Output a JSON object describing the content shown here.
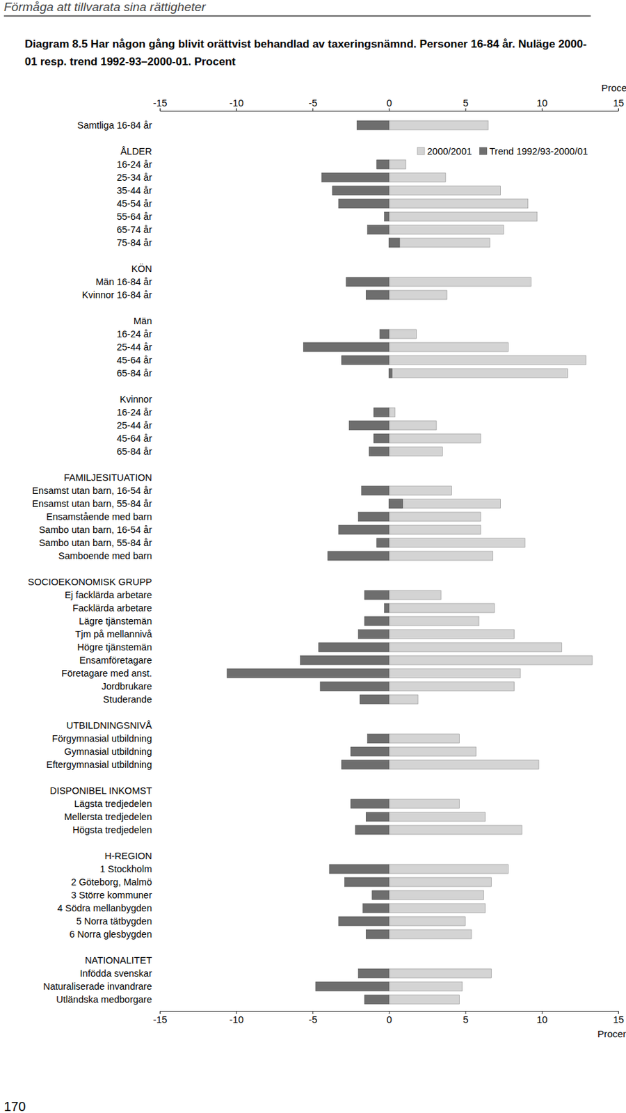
{
  "page": {
    "header": "Förmåga att tillvarata sina rättigheter",
    "page_number": 170
  },
  "chart_data": {
    "type": "bar",
    "orientation": "horizontal",
    "title": "Diagram 8.5 Har någon gång blivit orättvist behandlad av taxeringsnämnd. Personer 16-84 år. Nuläge 2000-01 resp. trend 1992-93–2000-01. Procent",
    "x_label": "Procent",
    "xlim": [
      -15,
      15
    ],
    "xticks": [
      -15,
      -10,
      -5,
      0,
      5,
      10,
      15
    ],
    "legend": "upper right",
    "categories": [
      "Samtliga 16-84 år",
      null,
      "ÅLDER",
      "16-24 år",
      "25-34 år",
      "35-44 år",
      "45-54 år",
      "55-64 år",
      "65-74 år",
      "75-84 år",
      null,
      "KÖN",
      "Män 16-84 år",
      "Kvinnor 16-84 år",
      null,
      "Män",
      "16-24 år",
      "25-44 år",
      "45-64 år",
      "65-84 år",
      null,
      "Kvinnor",
      "16-24 år",
      "25-44 år",
      "45-64 år",
      "65-84 år",
      null,
      "FAMILJESITUATION",
      "Ensamst utan barn, 16-54 år",
      "Ensamst utan barn, 55-84 år",
      "Ensamstående med barn",
      "Sambo utan barn, 16-54 år",
      "Sambo utan barn, 55-84 år",
      "Samboende med barn",
      null,
      "SOCIOEKONOMISK GRUPP",
      "Ej facklärda arbetare",
      "Facklärda arbetare",
      "Lägre tjänstemän",
      "Tjm på mellannivå",
      "Högre tjänstemän",
      "Ensamföretagare",
      "Företagare med anst.",
      "Jordbrukare",
      "Studerande",
      null,
      "UTBILDNINGSNIVÅ",
      "Förgymnasial utbildning",
      "Gymnasial utbildning",
      "Eftergymnasial utbildning",
      null,
      "DISPONIBEL INKOMST",
      "Lägsta tredjedelen",
      "Mellersta tredjedelen",
      "Högsta tredjedelen",
      null,
      "H-REGION",
      "1 Stockholm",
      "2 Göteborg, Malmö",
      "3 Större kommuner",
      "4 Södra mellanbygden",
      "5 Norra tätbygden",
      "6 Norra glesbygden",
      null,
      "NATIONALITET",
      "Infödda svenskar",
      "Naturaliserade invandrare",
      "Utländska medborgare"
    ],
    "series": [
      {
        "name": "2000/2001",
        "color": "#d4d4d4",
        "values": [
          6.5,
          null,
          null,
          1.1,
          3.7,
          7.3,
          9.1,
          9.7,
          7.5,
          6.6,
          null,
          null,
          9.3,
          3.8,
          null,
          null,
          1.8,
          7.8,
          12.9,
          11.7,
          null,
          null,
          0.4,
          3.1,
          6.0,
          3.5,
          null,
          null,
          4.1,
          7.3,
          6.0,
          6.0,
          8.9,
          6.8,
          null,
          null,
          3.4,
          6.9,
          5.9,
          8.2,
          11.3,
          13.3,
          8.6,
          8.2,
          1.9,
          null,
          null,
          4.6,
          5.7,
          9.8,
          null,
          null,
          4.6,
          6.3,
          8.7,
          null,
          null,
          7.8,
          6.7,
          6.2,
          6.3,
          5.0,
          5.4,
          null,
          null,
          6.7,
          4.8,
          4.6
        ]
      },
      {
        "name": "Trend 1992/93-2000/01",
        "color": "#6e6e6e",
        "values": [
          -2.1,
          null,
          null,
          -0.8,
          -4.4,
          -3.7,
          -3.3,
          -0.3,
          -1.4,
          0.7,
          null,
          null,
          -2.8,
          -1.5,
          null,
          null,
          -0.6,
          -5.6,
          -3.1,
          0.2,
          null,
          null,
          -1.0,
          -2.6,
          -1.0,
          -1.3,
          null,
          null,
          -1.8,
          0.9,
          -2.0,
          -3.3,
          -0.8,
          -4.0,
          null,
          null,
          -1.6,
          -0.3,
          -1.6,
          -2.0,
          -4.6,
          -5.8,
          -10.6,
          -4.5,
          -1.9,
          null,
          null,
          -1.4,
          -2.5,
          -3.1,
          null,
          null,
          -2.5,
          -1.5,
          -2.2,
          null,
          null,
          -3.9,
          -2.9,
          -1.1,
          -1.7,
          -3.3,
          -1.5,
          null,
          null,
          -2.0,
          -4.8,
          -1.6
        ]
      }
    ]
  }
}
